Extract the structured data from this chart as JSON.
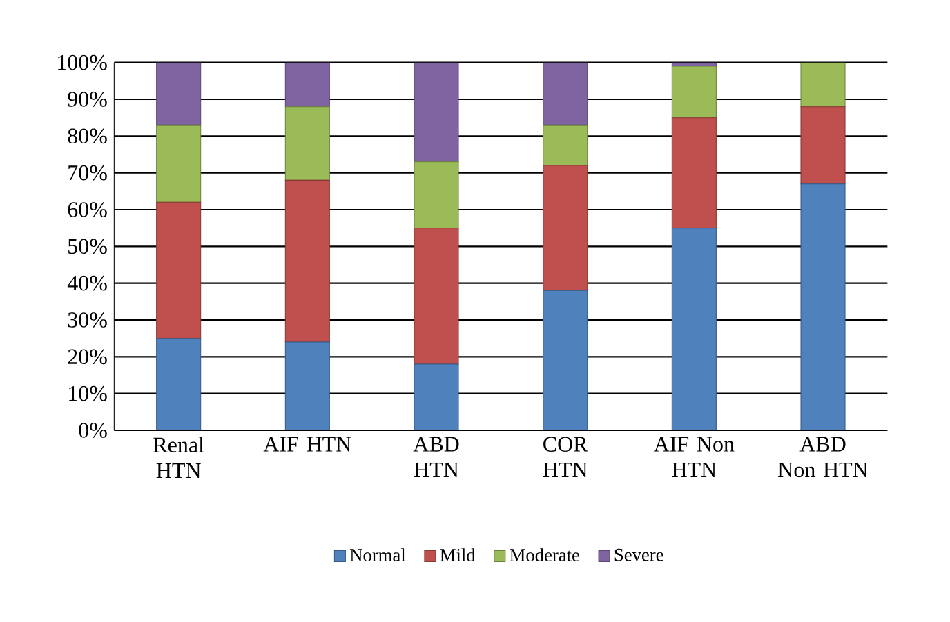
{
  "chart_data": {
    "type": "bar",
    "stacked": true,
    "categories": [
      "Renal HTN",
      "AIF HTN",
      "ABD HTN",
      "COR HTN",
      "AIF Non HTN",
      "ABD Non HTN"
    ],
    "series": [
      {
        "name": "Normal",
        "color": "#4f81bd",
        "values": [
          25,
          24,
          18,
          38,
          55,
          67
        ]
      },
      {
        "name": "Mild",
        "color": "#c0504d",
        "values": [
          37,
          44,
          37,
          34,
          30,
          21
        ]
      },
      {
        "name": "Moderate",
        "color": "#9bbb59",
        "values": [
          21,
          20,
          18,
          11,
          14,
          12
        ]
      },
      {
        "name": "Severe",
        "color": "#8064a2",
        "values": [
          17,
          12,
          27,
          17,
          1,
          0
        ]
      }
    ],
    "ylim": [
      0,
      100
    ],
    "yticks": [
      {
        "value": 0,
        "label": "0%"
      },
      {
        "value": 10,
        "label": "10%"
      },
      {
        "value": 20,
        "label": "20%"
      },
      {
        "value": 30,
        "label": "30%"
      },
      {
        "value": 40,
        "label": "40%"
      },
      {
        "value": 50,
        "label": "50%"
      },
      {
        "value": 60,
        "label": "60%"
      },
      {
        "value": 70,
        "label": "70%"
      },
      {
        "value": 80,
        "label": "80%"
      },
      {
        "value": 90,
        "label": "90%"
      },
      {
        "value": 100,
        "label": "100%"
      }
    ],
    "grid": "y",
    "legend": "bottom"
  }
}
